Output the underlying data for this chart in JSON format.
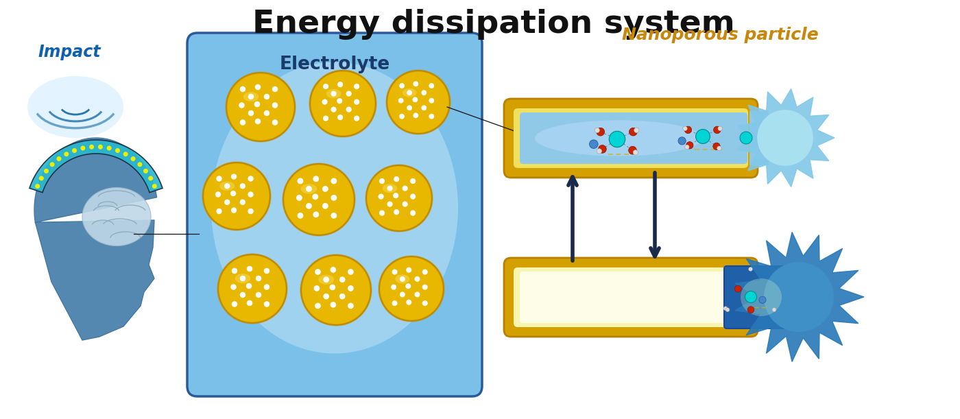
{
  "title": "Energy dissipation system",
  "title_fontsize": 34,
  "title_color": "#111111",
  "title_fontweight": "bold",
  "label_impact": "Impact",
  "label_impact_color": "#1060b0",
  "label_impact_fontsize": 17,
  "label_electrolyte": "Electrolyte",
  "label_electrolyte_color": "#1a3a6a",
  "label_electrolyte_fontsize": 19,
  "label_nanoporous": "Nanoporous particle",
  "label_nanoporous_color": "#c8860a",
  "label_nanoporous_fontsize": 18,
  "bg_color": "#ffffff",
  "electrolyte_box_color_top": "#a8d8f0",
  "electrolyte_box_color_bot": "#6ab4e0",
  "electrolyte_box_edge": "#2a5a9a",
  "particle_gold": "#e8b800",
  "particle_gold_dark": "#c8960a",
  "particle_hole_color": "#ffffff",
  "tube_fill_blue": "#a8d8f0",
  "tube_fill_yellow": "#fafad2",
  "tube_border": "#d4a000",
  "spiky_light": "#87ceeb",
  "spiky_dark": "#2080c0",
  "arrow_color": "#1a2a4a",
  "wave_color": "#1a6fa8",
  "connector_color": "#111111",
  "atom_cyan": "#00d4d4",
  "atom_red": "#cc2200",
  "atom_white": "#dddddd",
  "atom_blue_small": "#4488cc",
  "bond_dashed_color": "#4477aa",
  "bond_yellow": "#ddaa00"
}
